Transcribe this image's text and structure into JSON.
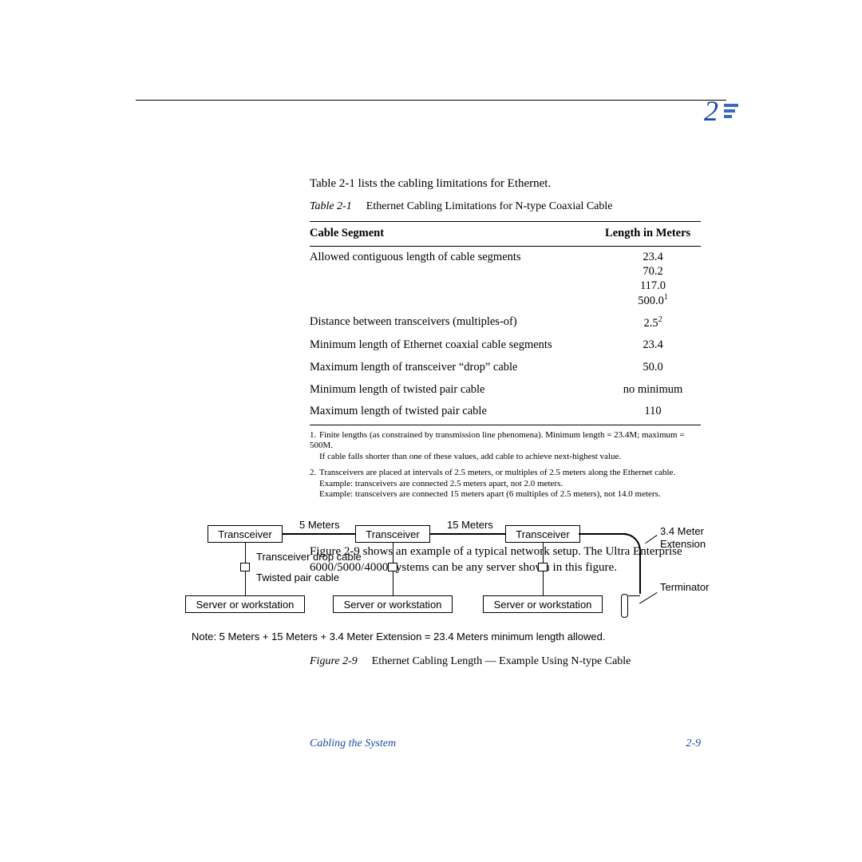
{
  "chapter_number": "2",
  "intro": "Table 2-1 lists the cabling limitations for Ethernet.",
  "table": {
    "label": "Table 2-1",
    "caption": "Ethernet Cabling Limitations for N-type Coaxial Cable",
    "headers": [
      "Cable Segment",
      "Length in Meters"
    ],
    "rows": [
      {
        "seg": "Allowed contiguous length of cable segments",
        "len": "23.4\n70.2\n117.0\n500.0",
        "sup": "1"
      },
      {
        "seg": "Distance between transceivers (multiples-of)",
        "len": "2.5",
        "sup": "2"
      },
      {
        "seg": "Minimum length of Ethernet coaxial cable segments",
        "len": "23.4"
      },
      {
        "seg": "Maximum length of transceiver “drop” cable",
        "len": "50.0"
      },
      {
        "seg": "Minimum length of twisted pair cable",
        "len": "no minimum"
      },
      {
        "seg": "Maximum length of twisted pair cable",
        "len": "110"
      }
    ]
  },
  "footnotes": [
    {
      "n": "1.",
      "t1": "Finite lengths (as constrained by transmission line phenomena). Minimum length = 23.4M; maximum = 500M.",
      "t2": "If cable falls shorter than one of these values, add cable to achieve next-highest value."
    },
    {
      "n": "2.",
      "t1": "Transceivers are placed at intervals of 2.5 meters, or multiples of 2.5 meters along the Ethernet cable.",
      "t2": "Example: transceivers are connected 2.5 meters apart, not 2.0 meters.",
      "t3": "Example: transceivers are connected 15 meters apart (6 multiples of 2.5 meters), not 14.0 meters."
    }
  ],
  "para2": "Figure 2-9 shows an example of a typical network setup. The Ultra Enterprise 6000/5000/4000 systems can be any server shown in this figure.",
  "dia": {
    "transceiver": "Transceiver",
    "d5": "5 Meters",
    "d15": "15 Meters",
    "ext": "3.4 Meter",
    "ext2": "Extension",
    "term": "Terminator",
    "tdrop": "Transceiver drop cable",
    "twist": "Twisted pair cable",
    "sw": "Server or workstation"
  },
  "note": "Note: 5 Meters + 15 Meters + 3.4 Meter Extension = 23.4 Meters minimum length allowed.",
  "figcap": {
    "label": "Figure 2-9",
    "text": "Ethernet Cabling Length — Example Using N-type Cable"
  },
  "footer": {
    "title": "Cabling the System",
    "page": "2-9"
  }
}
